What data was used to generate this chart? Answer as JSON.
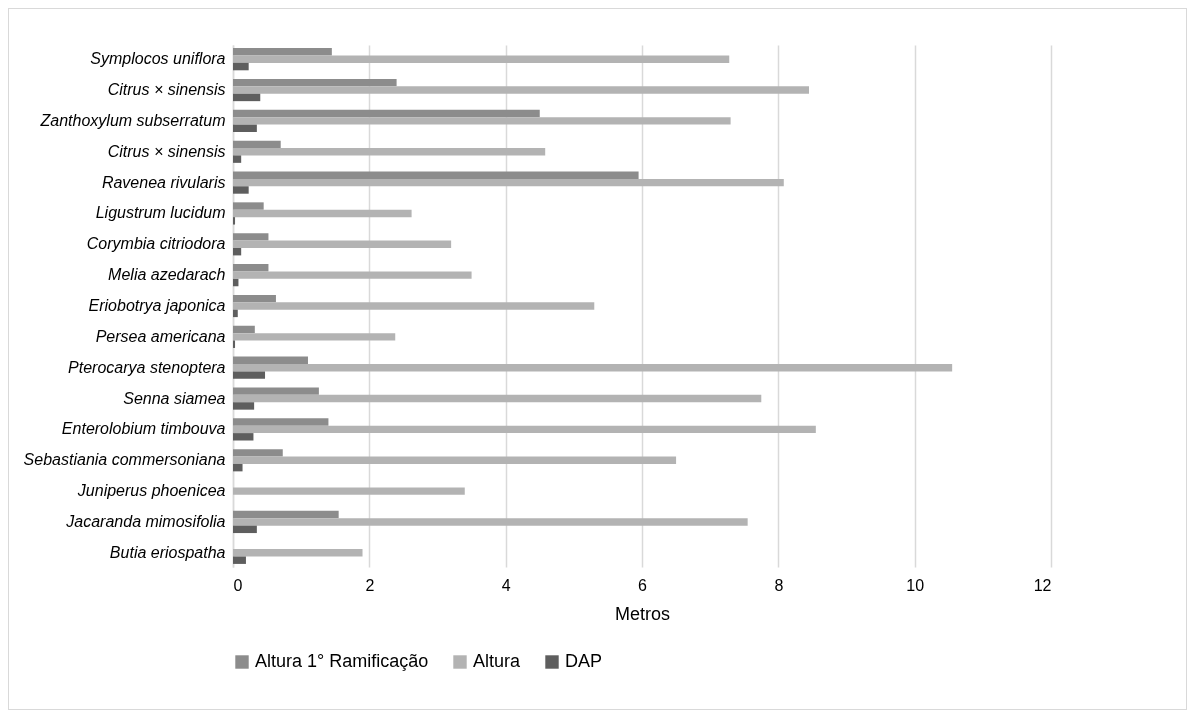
{
  "chart_data": {
    "type": "bar",
    "orientation": "horizontal",
    "xlabel": "Metros",
    "categories": [
      "Symplocos uniflora",
      "Citrus × sinensis",
      "Zanthoxylum subserratum",
      "Citrus × sinensis",
      "Ravenea rivularis",
      "Ligustrum lucidum",
      "Corymbia citriodora",
      "Melia azedarach",
      "Eriobotrya japonica",
      "Persea americana",
      "Pterocarya stenoptera",
      "Senna siamea",
      "Enterolobium timbouva",
      "Sebastiania commersoniana",
      "Juniperus phoenicea",
      "Jacaranda mimosifolia",
      "Butia eriospatha"
    ],
    "series": [
      {
        "name": "Altura 1° Ramificação",
        "color": "#8c8c8c",
        "values": [
          1.45,
          2.4,
          4.5,
          0.7,
          5.95,
          0.45,
          0.52,
          0.52,
          0.63,
          0.32,
          1.1,
          1.26,
          1.4,
          0.73,
          null,
          1.55,
          null
        ]
      },
      {
        "name": "Altura",
        "color": "#b3b3b3",
        "values": [
          7.28,
          8.45,
          7.3,
          4.58,
          8.08,
          2.62,
          3.2,
          3.5,
          5.3,
          2.38,
          10.55,
          7.75,
          8.55,
          6.5,
          3.4,
          7.55,
          1.9
        ]
      },
      {
        "name": "DAP",
        "color": "#5e5e5e",
        "values": [
          0.23,
          0.4,
          0.35,
          0.12,
          0.23,
          0.03,
          0.12,
          0.08,
          0.07,
          0.03,
          0.47,
          0.31,
          0.3,
          0.14,
          null,
          0.35,
          0.19
        ]
      }
    ],
    "xlim": [
      0,
      12
    ],
    "xticks": [
      0,
      2,
      4,
      6,
      8,
      10,
      12
    ],
    "grid": "x",
    "legend": "bottom"
  }
}
